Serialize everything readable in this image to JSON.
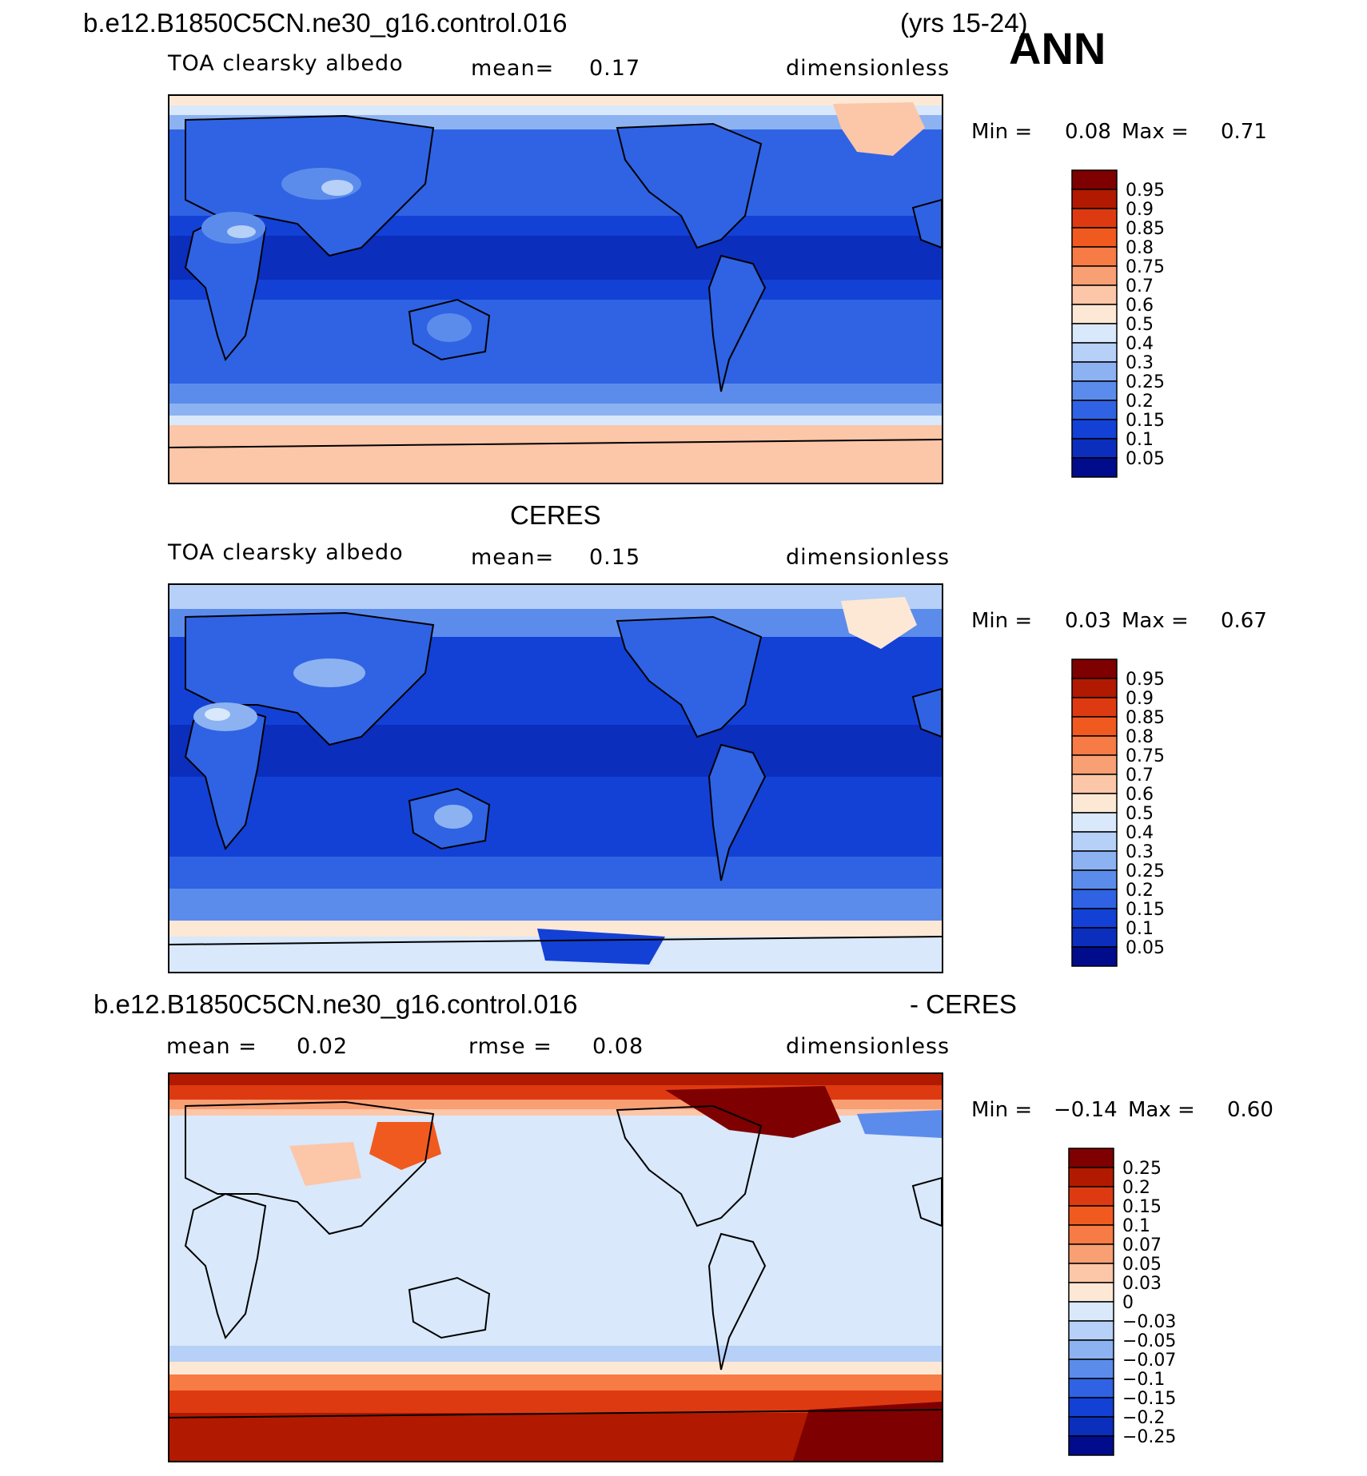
{
  "header": {
    "case_title": "b.e12.B1850C5CN.ne30_g16.control.016",
    "years": "(yrs 15-24)",
    "season": "ANN"
  },
  "panels": [
    {
      "id": "model",
      "variable": "TOA clearsky albedo",
      "mean_label": "mean=",
      "mean_value": "0.17",
      "units": "dimensionless",
      "min_label": "Min =",
      "min_value": "0.08",
      "max_label": "Max =",
      "max_value": "0.71"
    },
    {
      "id": "obs",
      "title": "CERES",
      "variable": "TOA clearsky albedo",
      "mean_label": "mean=",
      "mean_value": "0.15",
      "units": "dimensionless",
      "min_label": "Min =",
      "min_value": "0.03",
      "max_label": "Max =",
      "max_value": "0.67"
    },
    {
      "id": "diff",
      "title_left": "b.e12.B1850C5CN.ne30_g16.control.016",
      "title_right": "- CERES",
      "mean_label": "mean =",
      "mean_value": "0.02",
      "rmse_label": "rmse =",
      "rmse_value": "0.08",
      "units": "dimensionless",
      "min_label": "Min =",
      "min_value": "−0.14",
      "max_label": "Max =",
      "max_value": "0.60"
    }
  ],
  "colorbars": {
    "absolute": {
      "labels": [
        "0.95",
        "0.9",
        "0.85",
        "0.8",
        "0.75",
        "0.7",
        "0.6",
        "0.5",
        "0.4",
        "0.3",
        "0.25",
        "0.2",
        "0.15",
        "0.1",
        "0.05"
      ],
      "colors": [
        "#7f0000",
        "#b11a00",
        "#de3a12",
        "#f05a1e",
        "#f77b45",
        "#f99f74",
        "#fcc6a8",
        "#fde8d6",
        "#d9e8fa",
        "#b6d0f7",
        "#8cb2f2",
        "#5c8ceb",
        "#2f63e3",
        "#1341d6",
        "#0b2ebd",
        "#000c8c"
      ]
    },
    "difference": {
      "labels": [
        "0.25",
        "0.2",
        "0.15",
        "0.1",
        "0.07",
        "0.05",
        "0.03",
        "0",
        "−0.03",
        "−0.05",
        "−0.07",
        "−0.1",
        "−0.15",
        "−0.2",
        "−0.25"
      ],
      "colors": [
        "#7f0000",
        "#b11a00",
        "#de3a12",
        "#f05a1e",
        "#f77b45",
        "#f99f74",
        "#fcc6a8",
        "#fde8d6",
        "#d9e8fa",
        "#b6d0f7",
        "#8cb2f2",
        "#5c8ceb",
        "#2f63e3",
        "#1341d6",
        "#0b2ebd",
        "#000c8c"
      ]
    }
  }
}
